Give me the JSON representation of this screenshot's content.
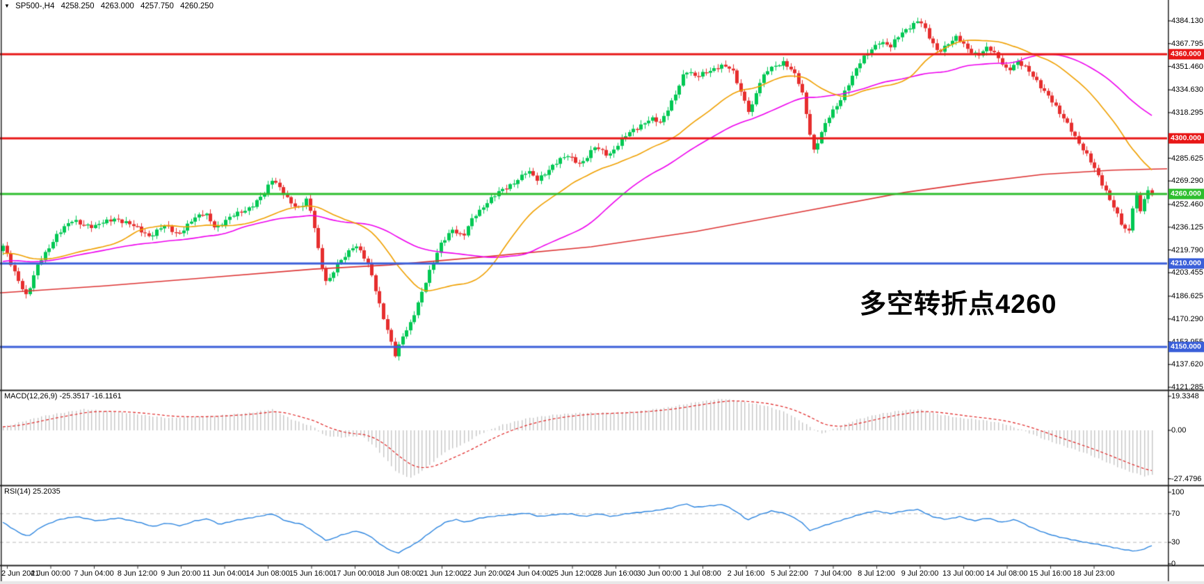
{
  "title_bar": {
    "symbol": "SP500-,H4",
    "open": "4258.250",
    "high": "4263.000",
    "low": "4257.750",
    "close": "4260.250",
    "dropdown_icon": "triangle-down-icon"
  },
  "colors": {
    "background": "#ffffff",
    "candle_up": "#00C853",
    "candle_down": "#E62E2E",
    "ma_fast": "#F0A000",
    "ma_mid": "#EE00EE",
    "ma_slow": "#DD3333",
    "hline_red": "#E81717",
    "hline_green": "#2EBE2E",
    "hline_blue": "#3A5FD9",
    "macd_hist": "#C6C6C6",
    "macd_signal": "#E02020",
    "rsi_line": "#2E86E0",
    "rsi_levels": "#BBBBBB",
    "annotation_red": "#E61717",
    "panel_border": "#222222",
    "axis_text": "#000000"
  },
  "chart_data": {
    "type": "candlestick",
    "symbol": "SP500-",
    "timeframe": "H4",
    "current_ohlc": {
      "open": 4258.25,
      "high": 4263.0,
      "low": 4257.75,
      "close": 4260.25
    },
    "bars": 300,
    "y_axis_visible_range": [
      4119.9,
      4391.1
    ],
    "price_path": [
      [
        4,
        4222
      ],
      [
        20,
        4205
      ],
      [
        38,
        4186
      ],
      [
        55,
        4210
      ],
      [
        80,
        4230
      ],
      [
        105,
        4241
      ],
      [
        135,
        4236
      ],
      [
        165,
        4243
      ],
      [
        190,
        4237
      ],
      [
        215,
        4230
      ],
      [
        235,
        4237
      ],
      [
        255,
        4231
      ],
      [
        275,
        4241
      ],
      [
        295,
        4246
      ],
      [
        310,
        4236
      ],
      [
        335,
        4244
      ],
      [
        360,
        4251
      ],
      [
        380,
        4260
      ],
      [
        392,
        4271
      ],
      [
        405,
        4263
      ],
      [
        420,
        4252
      ],
      [
        432,
        4248
      ],
      [
        440,
        4257
      ],
      [
        450,
        4242
      ],
      [
        460,
        4212
      ],
      [
        470,
        4194
      ],
      [
        482,
        4207
      ],
      [
        495,
        4216
      ],
      [
        510,
        4224
      ],
      [
        522,
        4215
      ],
      [
        532,
        4206
      ],
      [
        545,
        4182
      ],
      [
        558,
        4160
      ],
      [
        568,
        4143
      ],
      [
        578,
        4157
      ],
      [
        590,
        4168
      ],
      [
        605,
        4188
      ],
      [
        620,
        4207
      ],
      [
        635,
        4226
      ],
      [
        650,
        4235
      ],
      [
        665,
        4228
      ],
      [
        680,
        4244
      ],
      [
        700,
        4254
      ],
      [
        720,
        4262
      ],
      [
        740,
        4269
      ],
      [
        758,
        4276
      ],
      [
        772,
        4270
      ],
      [
        795,
        4281
      ],
      [
        815,
        4287
      ],
      [
        835,
        4282
      ],
      [
        855,
        4293
      ],
      [
        875,
        4288
      ],
      [
        895,
        4300
      ],
      [
        915,
        4307
      ],
      [
        935,
        4315
      ],
      [
        950,
        4310
      ],
      [
        968,
        4329
      ],
      [
        985,
        4349
      ],
      [
        1000,
        4343
      ],
      [
        1015,
        4348
      ],
      [
        1035,
        4352
      ],
      [
        1052,
        4349
      ],
      [
        1068,
        4330
      ],
      [
        1078,
        4318
      ],
      [
        1090,
        4337
      ],
      [
        1105,
        4350
      ],
      [
        1125,
        4355
      ],
      [
        1140,
        4347
      ],
      [
        1152,
        4335
      ],
      [
        1163,
        4307
      ],
      [
        1170,
        4291
      ],
      [
        1180,
        4303
      ],
      [
        1192,
        4315
      ],
      [
        1205,
        4325
      ],
      [
        1220,
        4340
      ],
      [
        1235,
        4353
      ],
      [
        1250,
        4363
      ],
      [
        1265,
        4370
      ],
      [
        1280,
        4365
      ],
      [
        1295,
        4375
      ],
      [
        1312,
        4382
      ],
      [
        1322,
        4385
      ],
      [
        1335,
        4372
      ],
      [
        1348,
        4362
      ],
      [
        1362,
        4368
      ],
      [
        1375,
        4372
      ],
      [
        1390,
        4364
      ],
      [
        1405,
        4360
      ],
      [
        1420,
        4365
      ],
      [
        1435,
        4357
      ],
      [
        1448,
        4349
      ],
      [
        1462,
        4355
      ],
      [
        1478,
        4348
      ],
      [
        1492,
        4340
      ],
      [
        1508,
        4330
      ],
      [
        1522,
        4318
      ],
      [
        1538,
        4308
      ],
      [
        1552,
        4296
      ],
      [
        1565,
        4285
      ],
      [
        1578,
        4273
      ],
      [
        1590,
        4262
      ],
      [
        1602,
        4250
      ],
      [
        1612,
        4238
      ],
      [
        1622,
        4230
      ],
      [
        1632,
        4262
      ],
      [
        1640,
        4248
      ],
      [
        1648,
        4263
      ],
      [
        1656,
        4260
      ]
    ],
    "ma_slow_path": [
      [
        0,
        4189
      ],
      [
        150,
        4194
      ],
      [
        300,
        4200
      ],
      [
        450,
        4206
      ],
      [
        560,
        4209
      ],
      [
        700,
        4215
      ],
      [
        850,
        4222
      ],
      [
        1000,
        4233
      ],
      [
        1150,
        4247
      ],
      [
        1300,
        4261
      ],
      [
        1400,
        4268
      ],
      [
        1500,
        4274
      ],
      [
        1600,
        4277
      ],
      [
        1678,
        4278
      ]
    ],
    "horizontal_lines": [
      {
        "price": 4360,
        "label": "4360.000",
        "style": "red"
      },
      {
        "price": 4300,
        "label": "4300.000",
        "style": "red"
      },
      {
        "price": 4260,
        "label": "4260.000",
        "style": "green"
      },
      {
        "price": 4210,
        "label": "4210.000",
        "style": "blue"
      },
      {
        "price": 4150,
        "label": "4150.000",
        "style": "blue"
      }
    ],
    "price_ticks": [
      {
        "label": "4384.130",
        "price": 4384.13
      },
      {
        "label": "4367.795",
        "price": 4367.795
      },
      {
        "label": "4351.460",
        "price": 4351.46
      },
      {
        "label": "4334.630",
        "price": 4334.63
      },
      {
        "label": "4318.295",
        "price": 4318.295
      },
      {
        "label": "4285.625",
        "price": 4285.625
      },
      {
        "label": "4269.290",
        "price": 4269.29
      },
      {
        "label": "4252.460",
        "price": 4252.46
      },
      {
        "label": "4236.125",
        "price": 4236.125
      },
      {
        "label": "4219.790",
        "price": 4219.79
      },
      {
        "label": "4203.455",
        "price": 4203.455
      },
      {
        "label": "4186.625",
        "price": 4186.625
      },
      {
        "label": "4170.290",
        "price": 4170.29
      },
      {
        "label": "4153.955",
        "price": 4153.955
      },
      {
        "label": "4137.620",
        "price": 4137.62
      },
      {
        "label": "4121.285",
        "price": 4121.285
      }
    ],
    "macd": {
      "label_full": "MACD(12,26,9) -25.3517 -16.1161",
      "params": "12,26,9",
      "main_value": -25.3517,
      "signal_value": -16.1161,
      "ticks": [
        {
          "label": "19.3348",
          "value": 19.3348
        },
        {
          "label": "0.00",
          "value": 0
        },
        {
          "label": "-27.4796",
          "value": -27.4796
        }
      ],
      "path": [
        [
          4,
          2
        ],
        [
          60,
          8
        ],
        [
          120,
          12
        ],
        [
          180,
          10
        ],
        [
          240,
          7
        ],
        [
          300,
          8
        ],
        [
          360,
          10
        ],
        [
          390,
          12
        ],
        [
          420,
          6
        ],
        [
          450,
          2
        ],
        [
          465,
          -3
        ],
        [
          490,
          -4
        ],
        [
          520,
          -3
        ],
        [
          540,
          -10
        ],
        [
          570,
          -24
        ],
        [
          590,
          -27
        ],
        [
          610,
          -22
        ],
        [
          640,
          -12
        ],
        [
          665,
          -8
        ],
        [
          690,
          -2
        ],
        [
          720,
          3
        ],
        [
          760,
          7
        ],
        [
          800,
          9
        ],
        [
          840,
          10
        ],
        [
          880,
          10
        ],
        [
          920,
          11
        ],
        [
          960,
          13
        ],
        [
          1000,
          16
        ],
        [
          1040,
          18
        ],
        [
          1070,
          16
        ],
        [
          1100,
          14
        ],
        [
          1130,
          10
        ],
        [
          1160,
          3
        ],
        [
          1180,
          -2
        ],
        [
          1200,
          1
        ],
        [
          1230,
          6
        ],
        [
          1260,
          9
        ],
        [
          1290,
          11
        ],
        [
          1320,
          12
        ],
        [
          1350,
          9
        ],
        [
          1380,
          7
        ],
        [
          1410,
          6
        ],
        [
          1440,
          4
        ],
        [
          1470,
          0
        ],
        [
          1500,
          -5
        ],
        [
          1530,
          -9
        ],
        [
          1560,
          -13
        ],
        [
          1590,
          -18
        ],
        [
          1620,
          -23
        ],
        [
          1645,
          -26
        ],
        [
          1656,
          -25.35
        ]
      ]
    },
    "rsi": {
      "label_full": "RSI(14) 25.2035",
      "period": 14,
      "value": 25.2035,
      "ticks": [
        {
          "label": "100",
          "value": 100
        },
        {
          "label": "70",
          "value": 70
        },
        {
          "label": "30",
          "value": 30
        },
        {
          "label": "0",
          "value": 0
        }
      ],
      "levels": [
        70,
        30
      ],
      "path": [
        [
          4,
          58
        ],
        [
          25,
          45
        ],
        [
          40,
          38
        ],
        [
          60,
          52
        ],
        [
          85,
          62
        ],
        [
          110,
          66
        ],
        [
          140,
          60
        ],
        [
          170,
          64
        ],
        [
          200,
          58
        ],
        [
          220,
          52
        ],
        [
          240,
          57
        ],
        [
          260,
          53
        ],
        [
          280,
          60
        ],
        [
          300,
          63
        ],
        [
          315,
          55
        ],
        [
          340,
          61
        ],
        [
          365,
          65
        ],
        [
          392,
          70
        ],
        [
          410,
          60
        ],
        [
          435,
          55
        ],
        [
          452,
          44
        ],
        [
          470,
          32
        ],
        [
          490,
          40
        ],
        [
          512,
          46
        ],
        [
          530,
          40
        ],
        [
          550,
          25
        ],
        [
          565,
          17
        ],
        [
          572,
          15
        ],
        [
          585,
          22
        ],
        [
          600,
          30
        ],
        [
          620,
          45
        ],
        [
          640,
          58
        ],
        [
          655,
          62
        ],
        [
          670,
          58
        ],
        [
          690,
          64
        ],
        [
          715,
          67
        ],
        [
          740,
          69
        ],
        [
          758,
          71
        ],
        [
          775,
          66
        ],
        [
          800,
          69
        ],
        [
          820,
          70
        ],
        [
          840,
          66
        ],
        [
          860,
          70
        ],
        [
          880,
          66
        ],
        [
          900,
          70
        ],
        [
          920,
          72
        ],
        [
          940,
          74
        ],
        [
          965,
          78
        ],
        [
          985,
          84
        ],
        [
          1000,
          79
        ],
        [
          1020,
          81
        ],
        [
          1040,
          83
        ],
        [
          1060,
          72
        ],
        [
          1075,
          61
        ],
        [
          1090,
          68
        ],
        [
          1110,
          74
        ],
        [
          1130,
          70
        ],
        [
          1150,
          60
        ],
        [
          1165,
          46
        ],
        [
          1180,
          52
        ],
        [
          1200,
          58
        ],
        [
          1220,
          64
        ],
        [
          1240,
          70
        ],
        [
          1260,
          74
        ],
        [
          1280,
          70
        ],
        [
          1300,
          74
        ],
        [
          1320,
          76
        ],
        [
          1340,
          66
        ],
        [
          1360,
          62
        ],
        [
          1380,
          66
        ],
        [
          1400,
          60
        ],
        [
          1420,
          64
        ],
        [
          1440,
          58
        ],
        [
          1460,
          62
        ],
        [
          1480,
          52
        ],
        [
          1500,
          44
        ],
        [
          1520,
          38
        ],
        [
          1540,
          34
        ],
        [
          1560,
          30
        ],
        [
          1580,
          27
        ],
        [
          1600,
          23
        ],
        [
          1615,
          20
        ],
        [
          1630,
          18
        ],
        [
          1640,
          19
        ],
        [
          1650,
          23
        ],
        [
          1656,
          25.2
        ]
      ]
    },
    "time_labels": [
      "2 Jun 2021",
      "4 Jun 00:00",
      "7 Jun 04:00",
      "8 Jun 12:00",
      "9 Jun 20:00",
      "11 Jun 04:00",
      "14 Jun 08:00",
      "15 Jun 16:00",
      "17 Jun 00:00",
      "18 Jun 08:00",
      "21 Jun 12:00",
      "22 Jun 20:00",
      "24 Jun 04:00",
      "25 Jun 12:00",
      "28 Jun 16:00",
      "30 Jun 00:00",
      "1 Jul 08:00",
      "2 Jul 16:00",
      "5 Jul 22:00",
      "7 Jul 04:00",
      "8 Jul 12:00",
      "9 Jul 20:00",
      "13 Jul 00:00",
      "14 Jul 08:00",
      "15 Jul 16:00",
      "18 Jul 23:00"
    ],
    "annotation": {
      "text": "多空转折点4260",
      "color": "#E61717"
    }
  }
}
